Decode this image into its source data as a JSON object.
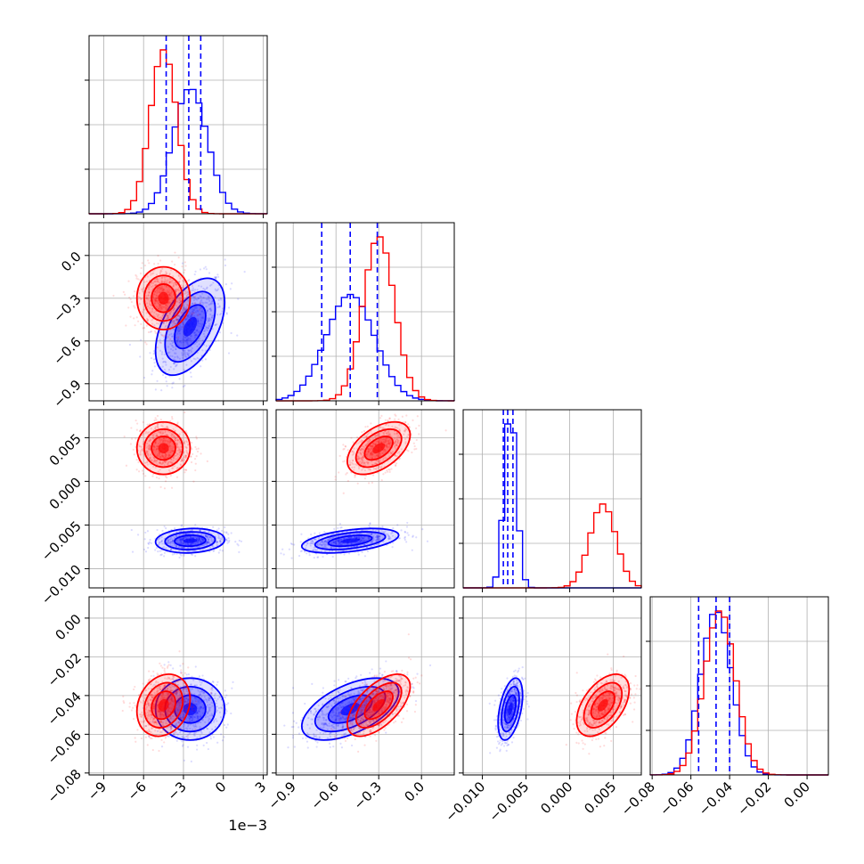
{
  "chart_data": {
    "type": "corner",
    "grid": true,
    "series": [
      {
        "color": "#0000ff",
        "quantiles_color": "#0000ff"
      },
      {
        "color": "#ff0000"
      }
    ],
    "params": [
      {
        "range": [
          -0.0101,
          0.0033
        ],
        "ticks": [
          -0.009,
          -0.006,
          -0.003,
          0,
          0.003
        ],
        "tick_labels": [
          "−9",
          "−6",
          "−3",
          "0",
          "3"
        ],
        "offset_label": "1e−3"
      },
      {
        "range": [
          -1.02,
          0.23
        ],
        "ticks": [
          -0.9,
          -0.6,
          -0.3,
          0.0
        ],
        "tick_labels": [
          "−0.9",
          "−0.6",
          "−0.3",
          "0.0"
        ]
      },
      {
        "range": [
          -0.0122,
          0.0082
        ],
        "ticks": [
          -0.01,
          -0.005,
          0.0,
          0.005
        ],
        "tick_labels": [
          "−0.010",
          "−0.005",
          "0.000",
          "0.005"
        ]
      },
      {
        "range": [
          -0.081,
          0.011
        ],
        "ticks": [
          -0.08,
          -0.06,
          -0.04,
          -0.02,
          0.0
        ],
        "tick_labels": [
          "−0.08",
          "−0.06",
          "−0.04",
          "−0.02",
          "0.00"
        ]
      }
    ],
    "distributions": {
      "blue": {
        "mean": [
          -0.0025,
          -0.5,
          -0.0068,
          -0.047
        ],
        "sd": [
          0.0013,
          0.17,
          0.0007,
          0.008
        ]
      },
      "red": {
        "mean": [
          -0.0045,
          -0.3,
          0.0038,
          -0.045
        ],
        "sd": [
          0.001,
          0.11,
          0.0015,
          0.008
        ]
      }
    },
    "quantile_lines": [
      [
        -0.0043,
        -0.0026,
        -0.0017
      ],
      [
        -0.7,
        -0.5,
        -0.31
      ],
      [
        -0.0076,
        -0.0071,
        -0.0065
      ],
      [
        -0.056,
        -0.047,
        -0.04
      ]
    ]
  }
}
